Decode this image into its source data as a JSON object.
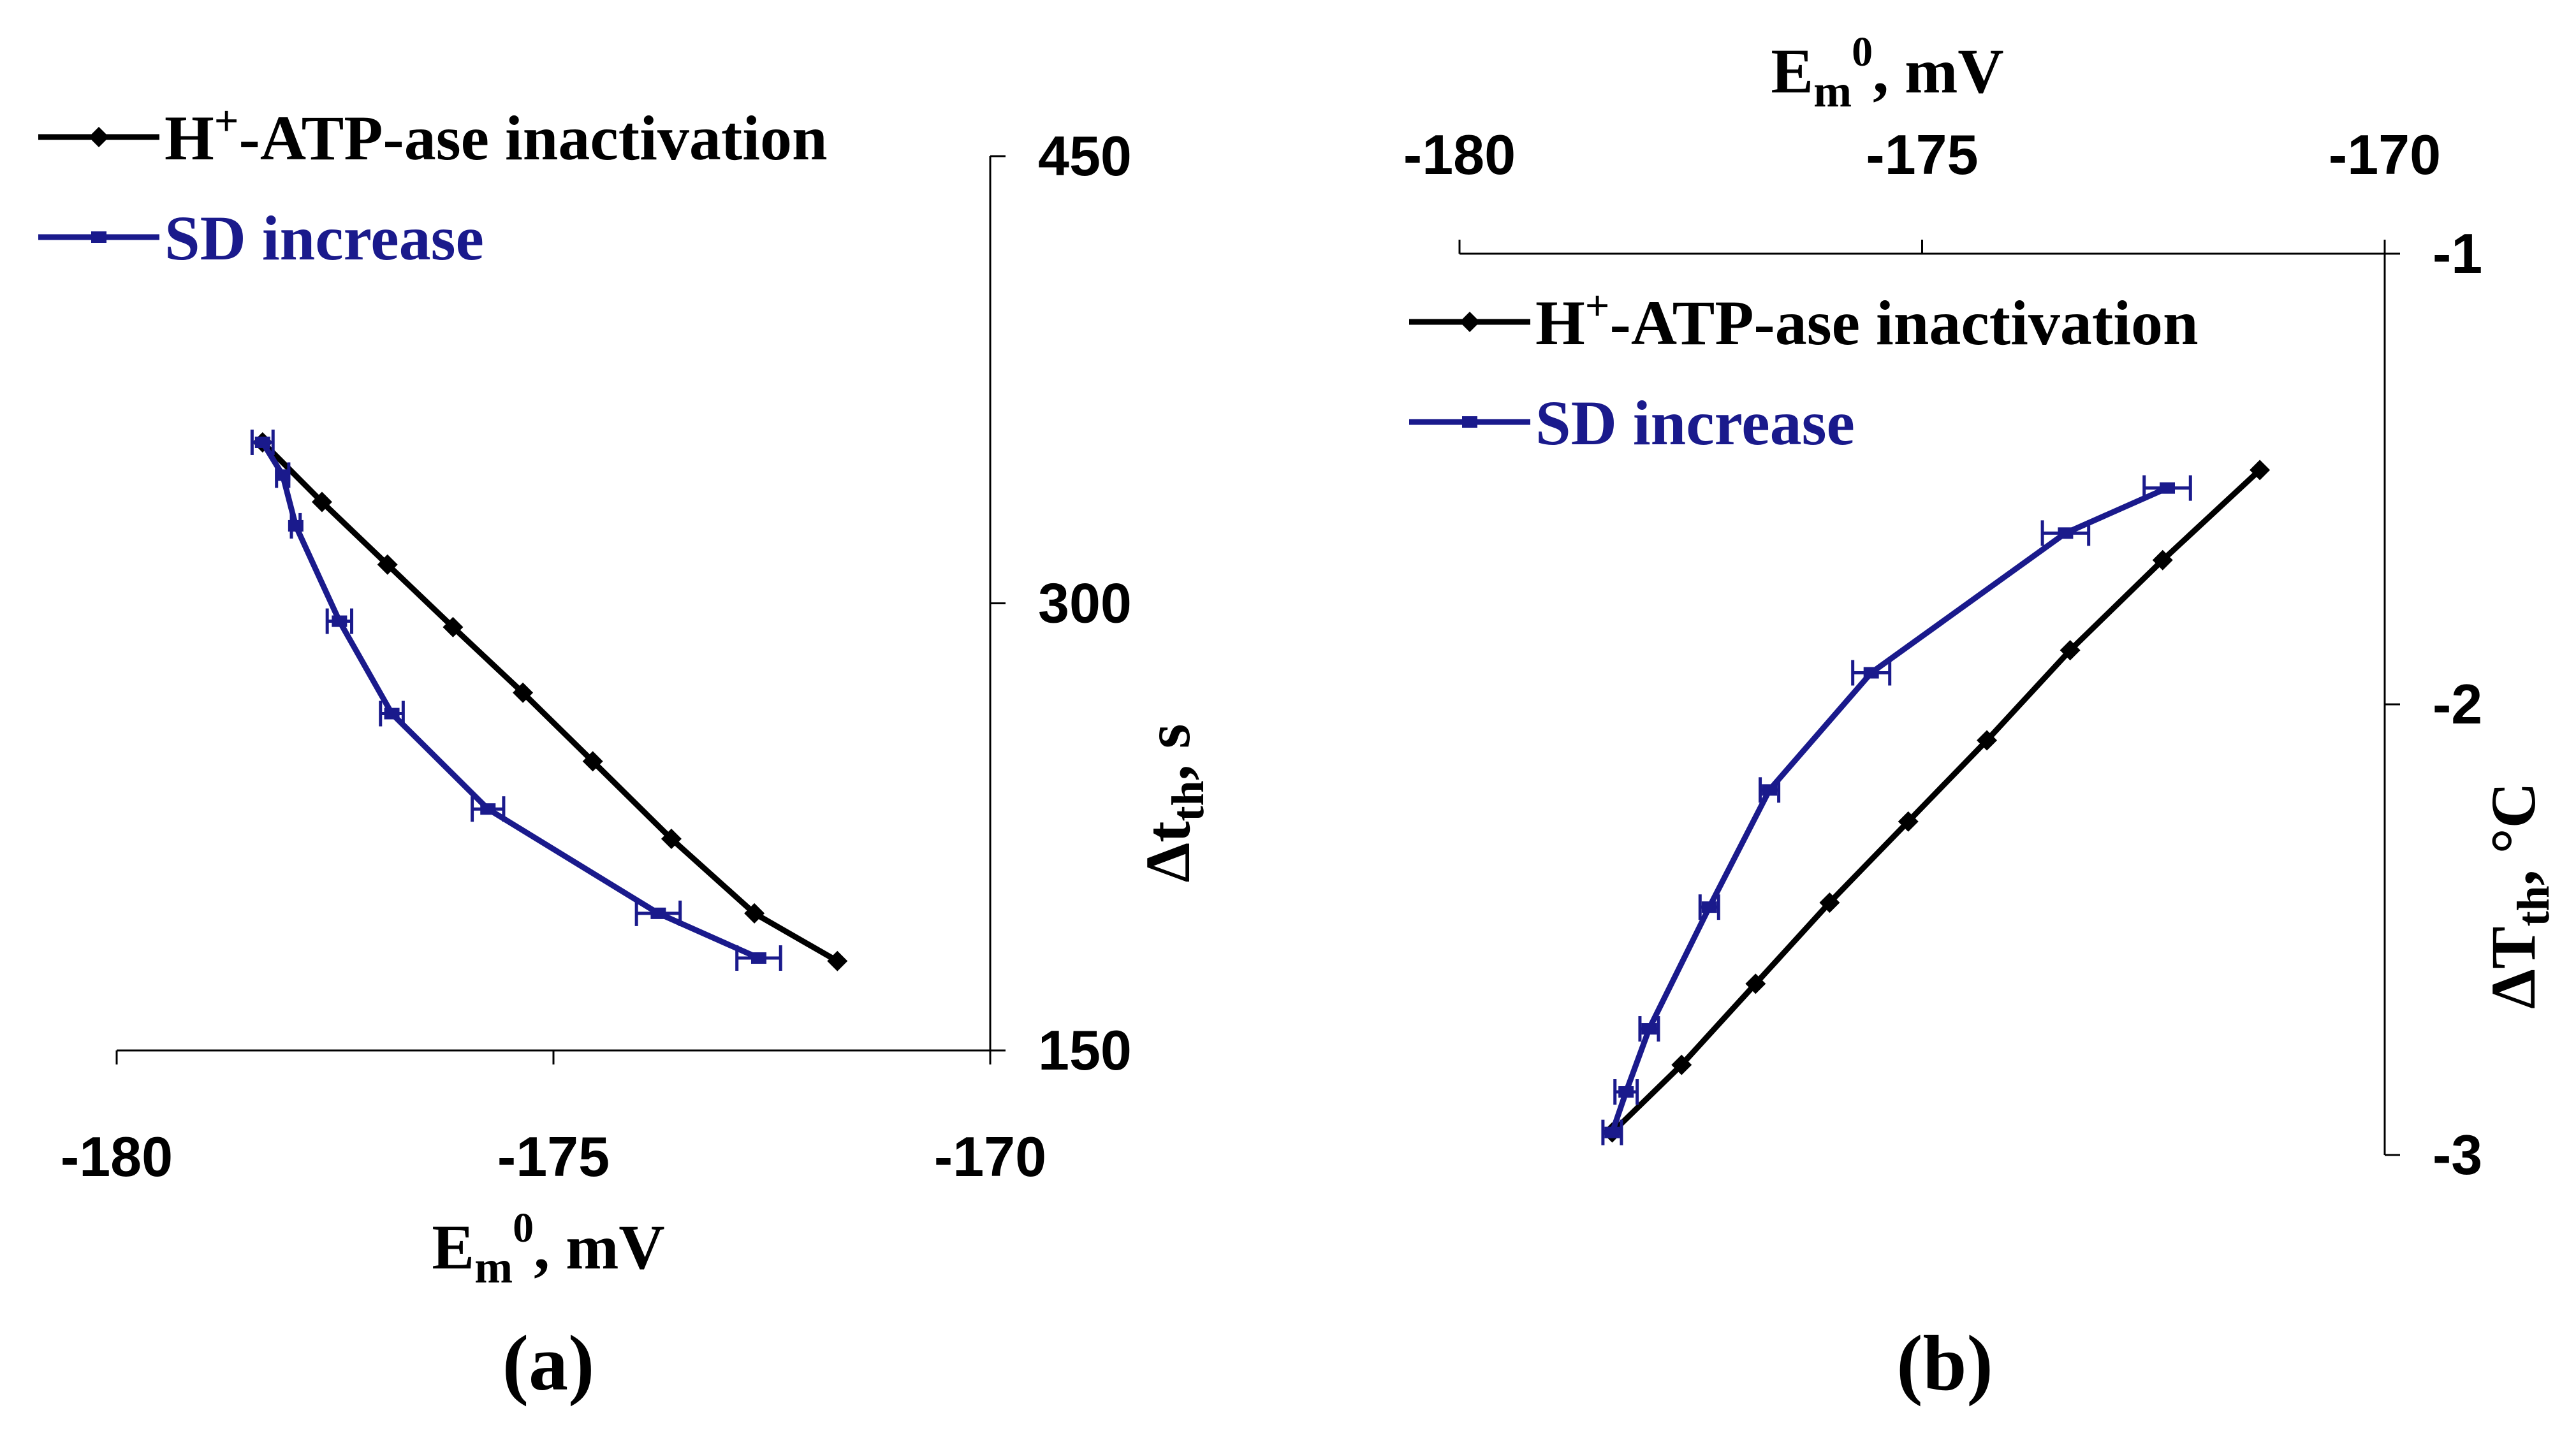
{
  "chart_data": [
    {
      "panel": "a",
      "type": "line",
      "panel_label": "(a)",
      "xlabel": {
        "main": "E",
        "sub": "m",
        "sup": "0",
        "tail": ", mV"
      },
      "ylabel": {
        "main": "Δt",
        "sub": "th",
        "tail": ", s"
      },
      "xlim": [
        -180,
        -170
      ],
      "ylim": [
        150,
        450
      ],
      "xticks": [
        -180,
        -175,
        -170
      ],
      "yticks": [
        150,
        300,
        450
      ],
      "xtick_labels": [
        "-180",
        "-175",
        "-170"
      ],
      "ytick_labels": [
        "150",
        "300",
        "450"
      ],
      "legend": [
        {
          "prefix": "H",
          "sup": "+",
          "rest": "-ATP-ase inactivation",
          "color": "#000000",
          "marker": "diamond"
        },
        {
          "text": "SD increase",
          "color": "#1a1a8c",
          "marker": "bar"
        }
      ],
      "series": [
        {
          "name": "H+-ATP-ase inactivation",
          "color": "#000000",
          "marker": "diamond",
          "x": [
            -178.33,
            -177.65,
            -176.9,
            -176.15,
            -175.35,
            -174.55,
            -173.65,
            -172.7,
            -171.75
          ],
          "y": [
            354,
            334,
            313,
            292,
            270,
            247,
            221,
            196,
            180
          ]
        },
        {
          "name": "SD increase",
          "color": "#1a1a8c",
          "marker": "bar",
          "x": [
            -178.33,
            -178.1,
            -177.95,
            -177.45,
            -176.85,
            -175.75,
            -173.8,
            -172.65
          ],
          "y": [
            354,
            343,
            326,
            294,
            263,
            231,
            196,
            181
          ],
          "xerr": [
            0.12,
            0.07,
            0.05,
            0.14,
            0.13,
            0.18,
            0.25,
            0.25
          ]
        }
      ]
    },
    {
      "panel": "b",
      "type": "line",
      "panel_label": "(b)",
      "xlabel": {
        "main": "E",
        "sub": "m",
        "sup": "0",
        "tail": ", mV"
      },
      "ylabel": {
        "main": "ΔT",
        "sub": "th",
        "tail": ", °C"
      },
      "xlim": [
        -180,
        -170
      ],
      "ylim": [
        -3,
        -1
      ],
      "xticks": [
        -180,
        -175,
        -170
      ],
      "yticks": [
        -1,
        -2,
        -3
      ],
      "xtick_labels": [
        "-180",
        "-175",
        "-170"
      ],
      "ytick_labels": [
        "-1",
        "-2",
        "-3"
      ],
      "legend": [
        {
          "prefix": "H",
          "sup": "+",
          "rest": "-ATP-ase inactivation",
          "color": "#000000",
          "marker": "diamond"
        },
        {
          "text": "SD increase",
          "color": "#1a1a8c",
          "marker": "bar"
        }
      ],
      "series": [
        {
          "name": "H+-ATP-ase inactivation",
          "color": "#000000",
          "marker": "diamond",
          "x": [
            -178.35,
            -177.6,
            -176.8,
            -176.0,
            -175.15,
            -174.3,
            -173.4,
            -172.4,
            -171.35
          ],
          "y": [
            -2.95,
            -2.8,
            -2.62,
            -2.44,
            -2.26,
            -2.08,
            -1.88,
            -1.68,
            -1.48
          ]
        },
        {
          "name": "SD increase",
          "color": "#1a1a8c",
          "marker": "bar",
          "x": [
            -178.35,
            -178.2,
            -177.95,
            -177.3,
            -176.65,
            -175.55,
            -173.45,
            -172.35
          ],
          "y": [
            -2.95,
            -2.86,
            -2.72,
            -2.45,
            -2.19,
            -1.93,
            -1.62,
            -1.52
          ],
          "xerr": [
            0.1,
            0.12,
            0.1,
            0.1,
            0.1,
            0.2,
            0.25,
            0.25
          ]
        }
      ]
    }
  ]
}
